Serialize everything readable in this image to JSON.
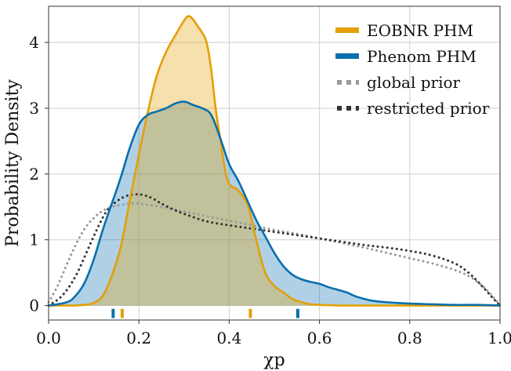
{
  "chart_data": {
    "type": "area",
    "xlabel": "χp",
    "ylabel": "Probability Density",
    "xlim": [
      0.0,
      1.0
    ],
    "ylim": [
      -0.22,
      4.55
    ],
    "xticks": [
      0.0,
      0.2,
      0.4,
      0.6,
      0.8,
      1.0
    ],
    "xtick_labels": [
      "0.0",
      "0.2",
      "0.4",
      "0.6",
      "0.8",
      "1.0"
    ],
    "yticks": [
      0,
      1,
      2,
      3,
      4
    ],
    "ytick_labels": [
      "0",
      "1",
      "2",
      "3",
      "4"
    ],
    "grid": true,
    "legend_position": "top-right",
    "series": [
      {
        "name": "EOBNR PHM",
        "style": "filled",
        "color": "#E3A007",
        "fill": "#F5DCA2",
        "x": [
          0.0,
          0.05,
          0.08,
          0.1,
          0.12,
          0.14,
          0.16,
          0.18,
          0.2,
          0.22,
          0.24,
          0.26,
          0.28,
          0.3,
          0.31,
          0.32,
          0.33,
          0.34,
          0.35,
          0.36,
          0.37,
          0.38,
          0.39,
          0.4,
          0.42,
          0.44,
          0.45,
          0.46,
          0.48,
          0.5,
          0.52,
          0.54,
          0.56,
          0.58,
          0.6,
          0.65,
          0.7,
          1.0
        ],
        "y": [
          0.0,
          0.0,
          0.01,
          0.04,
          0.15,
          0.45,
          0.9,
          1.6,
          2.3,
          2.95,
          3.5,
          3.85,
          4.1,
          4.33,
          4.4,
          4.35,
          4.25,
          4.15,
          4.0,
          3.6,
          3.0,
          2.55,
          2.1,
          1.85,
          1.75,
          1.55,
          1.3,
          1.0,
          0.5,
          0.3,
          0.2,
          0.1,
          0.05,
          0.02,
          0.01,
          0.0,
          0.0,
          0.0
        ]
      },
      {
        "name": "Phenom PHM",
        "style": "filled",
        "color": "#0A6FAE",
        "fill": "#A8CFE8",
        "x": [
          0.0,
          0.04,
          0.06,
          0.08,
          0.1,
          0.12,
          0.14,
          0.16,
          0.18,
          0.2,
          0.22,
          0.24,
          0.26,
          0.28,
          0.3,
          0.32,
          0.34,
          0.36,
          0.38,
          0.4,
          0.42,
          0.44,
          0.46,
          0.48,
          0.5,
          0.52,
          0.54,
          0.56,
          0.58,
          0.6,
          0.62,
          0.64,
          0.66,
          0.68,
          0.7,
          0.72,
          0.75,
          0.8,
          0.85,
          0.9,
          0.95,
          1.0
        ],
        "y": [
          0.0,
          0.05,
          0.15,
          0.35,
          0.7,
          1.15,
          1.55,
          1.95,
          2.4,
          2.75,
          2.9,
          2.95,
          3.0,
          3.07,
          3.1,
          3.05,
          3.0,
          2.9,
          2.55,
          2.15,
          1.9,
          1.6,
          1.3,
          1.05,
          0.8,
          0.6,
          0.47,
          0.4,
          0.36,
          0.33,
          0.28,
          0.24,
          0.2,
          0.14,
          0.1,
          0.07,
          0.05,
          0.03,
          0.02,
          0.01,
          0.01,
          0.0
        ]
      },
      {
        "name": "global prior",
        "style": "dotted",
        "color": "#999999",
        "x": [
          0.0,
          0.02,
          0.04,
          0.06,
          0.08,
          0.1,
          0.12,
          0.14,
          0.16,
          0.18,
          0.2,
          0.25,
          0.3,
          0.35,
          0.4,
          0.45,
          0.5,
          0.55,
          0.6,
          0.65,
          0.7,
          0.75,
          0.8,
          0.85,
          0.9,
          0.93,
          0.95,
          0.97,
          0.99,
          1.0
        ],
        "y": [
          0.05,
          0.3,
          0.62,
          0.92,
          1.17,
          1.33,
          1.44,
          1.5,
          1.53,
          1.55,
          1.55,
          1.5,
          1.43,
          1.36,
          1.29,
          1.22,
          1.15,
          1.09,
          1.02,
          0.95,
          0.88,
          0.8,
          0.72,
          0.64,
          0.54,
          0.45,
          0.36,
          0.24,
          0.09,
          0.0
        ]
      },
      {
        "name": "restricted prior",
        "style": "dotted",
        "color": "#333333",
        "x": [
          0.0,
          0.03,
          0.06,
          0.09,
          0.11,
          0.13,
          0.15,
          0.17,
          0.19,
          0.21,
          0.23,
          0.25,
          0.28,
          0.31,
          0.35,
          0.4,
          0.45,
          0.5,
          0.55,
          0.6,
          0.65,
          0.7,
          0.75,
          0.8,
          0.85,
          0.9,
          0.93,
          0.95,
          0.97,
          0.99,
          1.0
        ],
        "y": [
          0.0,
          0.15,
          0.45,
          0.9,
          1.2,
          1.45,
          1.58,
          1.66,
          1.69,
          1.68,
          1.63,
          1.55,
          1.45,
          1.37,
          1.28,
          1.22,
          1.17,
          1.12,
          1.07,
          1.02,
          0.97,
          0.92,
          0.88,
          0.83,
          0.76,
          0.64,
          0.5,
          0.37,
          0.22,
          0.07,
          0.0
        ]
      }
    ],
    "markers": [
      {
        "series": "Phenom PHM",
        "x": 0.143,
        "color": "#0A6FAE"
      },
      {
        "series": "EOBNR PHM",
        "x": 0.163,
        "color": "#E3A007"
      },
      {
        "series": "EOBNR PHM",
        "x": 0.447,
        "color": "#E3A007"
      },
      {
        "series": "Phenom PHM",
        "x": 0.552,
        "color": "#0A6FAE"
      }
    ]
  }
}
